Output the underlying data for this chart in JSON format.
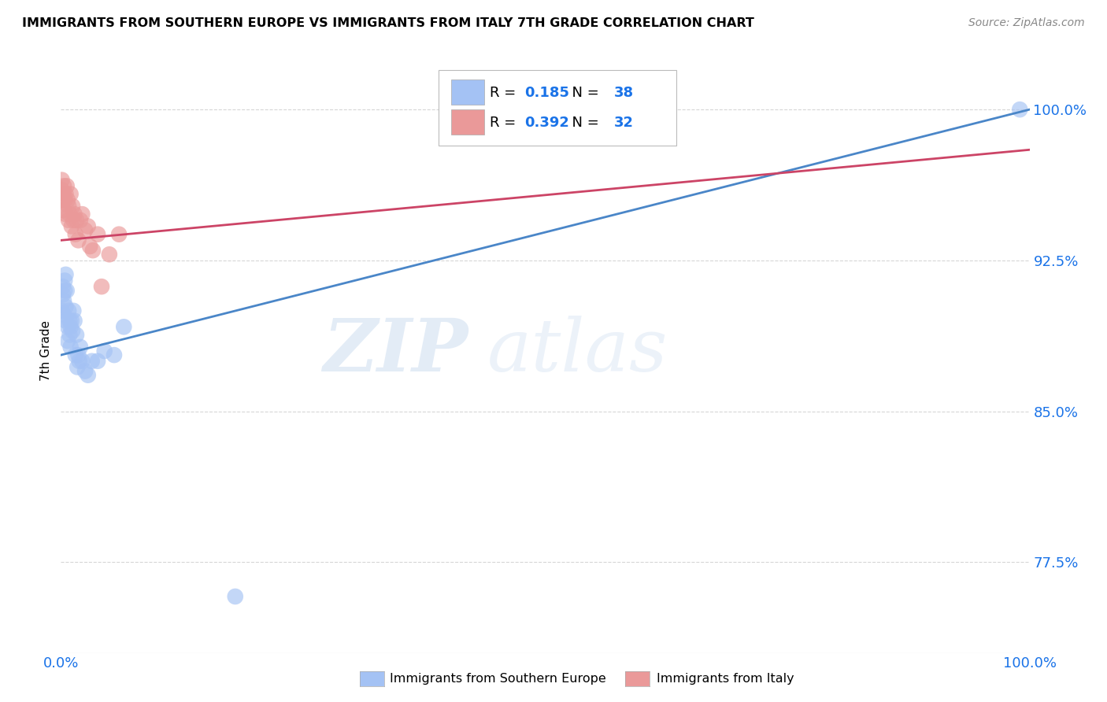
{
  "title": "IMMIGRANTS FROM SOUTHERN EUROPE VS IMMIGRANTS FROM ITALY 7TH GRADE CORRELATION CHART",
  "source": "Source: ZipAtlas.com",
  "ylabel": "7th Grade",
  "legend_label1": "Immigrants from Southern Europe",
  "legend_label2": "Immigrants from Italy",
  "r1": 0.185,
  "n1": 38,
  "r2": 0.392,
  "n2": 32,
  "color_blue": "#a4c2f4",
  "color_pink": "#ea9999",
  "color_blue_line": "#4a86c8",
  "color_pink_line": "#cc4466",
  "color_numbers": "#1a73e8",
  "watermark_zip": "ZIP",
  "watermark_atlas": "atlas",
  "blue_scatter_x": [
    0.001,
    0.002,
    0.002,
    0.003,
    0.003,
    0.004,
    0.004,
    0.005,
    0.005,
    0.005,
    0.006,
    0.007,
    0.007,
    0.008,
    0.009,
    0.009,
    0.01,
    0.01,
    0.011,
    0.012,
    0.013,
    0.014,
    0.015,
    0.016,
    0.017,
    0.018,
    0.019,
    0.02,
    0.022,
    0.025,
    0.028,
    0.032,
    0.038,
    0.045,
    0.055,
    0.065,
    0.18,
    0.99
  ],
  "blue_scatter_y": [
    0.9,
    0.908,
    0.912,
    0.898,
    0.905,
    0.915,
    0.91,
    0.895,
    0.902,
    0.918,
    0.91,
    0.885,
    0.892,
    0.9,
    0.888,
    0.895,
    0.882,
    0.892,
    0.895,
    0.89,
    0.9,
    0.895,
    0.878,
    0.888,
    0.872,
    0.878,
    0.875,
    0.882,
    0.875,
    0.87,
    0.868,
    0.875,
    0.875,
    0.88,
    0.878,
    0.892,
    0.758,
    1.0
  ],
  "pink_scatter_x": [
    0.001,
    0.001,
    0.002,
    0.002,
    0.003,
    0.003,
    0.004,
    0.005,
    0.005,
    0.006,
    0.007,
    0.008,
    0.008,
    0.009,
    0.01,
    0.011,
    0.012,
    0.013,
    0.014,
    0.015,
    0.016,
    0.018,
    0.02,
    0.022,
    0.025,
    0.028,
    0.03,
    0.033,
    0.038,
    0.042,
    0.05,
    0.06
  ],
  "pink_scatter_y": [
    0.96,
    0.965,
    0.955,
    0.95,
    0.958,
    0.962,
    0.955,
    0.948,
    0.958,
    0.962,
    0.955,
    0.945,
    0.952,
    0.948,
    0.958,
    0.942,
    0.952,
    0.945,
    0.948,
    0.938,
    0.945,
    0.935,
    0.945,
    0.948,
    0.94,
    0.942,
    0.932,
    0.93,
    0.938,
    0.912,
    0.928,
    0.938
  ],
  "xlim": [
    0.0,
    1.0
  ],
  "ylim": [
    0.73,
    1.03
  ],
  "yticks": [
    0.775,
    0.85,
    0.925,
    1.0
  ],
  "ytick_labels": [
    "77.5%",
    "85.0%",
    "92.5%",
    "100.0%"
  ],
  "xtick_positions": [
    0.0,
    1.0
  ],
  "xtick_labels": [
    "0.0%",
    "100.0%"
  ],
  "blue_line_x": [
    0.0,
    1.0
  ],
  "blue_line_y": [
    0.878,
    1.0
  ],
  "pink_line_x": [
    0.0,
    1.0
  ],
  "pink_line_y": [
    0.935,
    0.98
  ]
}
